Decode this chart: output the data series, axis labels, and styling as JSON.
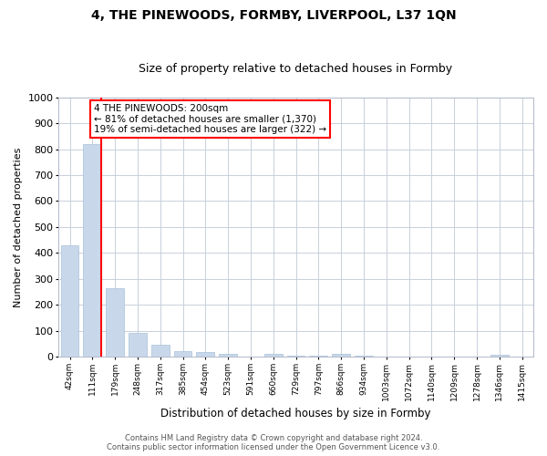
{
  "title": "4, THE PINEWOODS, FORMBY, LIVERPOOL, L37 1QN",
  "subtitle": "Size of property relative to detached houses in Formby",
  "xlabel": "Distribution of detached houses by size in Formby",
  "ylabel": "Number of detached properties",
  "categories": [
    "42sqm",
    "111sqm",
    "179sqm",
    "248sqm",
    "317sqm",
    "385sqm",
    "454sqm",
    "523sqm",
    "591sqm",
    "660sqm",
    "729sqm",
    "797sqm",
    "866sqm",
    "934sqm",
    "1003sqm",
    "1072sqm",
    "1140sqm",
    "1209sqm",
    "1278sqm",
    "1346sqm",
    "1415sqm"
  ],
  "values": [
    430,
    820,
    265,
    90,
    47,
    22,
    17,
    12,
    0,
    10,
    5,
    3,
    10,
    3,
    0,
    0,
    0,
    0,
    0,
    8,
    0
  ],
  "bar_color": "#c8d8ea",
  "bar_edge_color": "#a8c0d8",
  "annotation_text": "4 THE PINEWOODS: 200sqm\n← 81% of detached houses are smaller (1,370)\n19% of semi-detached houses are larger (322) →",
  "ylim": [
    0,
    1000
  ],
  "yticks": [
    0,
    100,
    200,
    300,
    400,
    500,
    600,
    700,
    800,
    900,
    1000
  ],
  "footer_line1": "Contains HM Land Registry data © Crown copyright and database right 2024.",
  "footer_line2": "Contains public sector information licensed under the Open Government Licence v3.0.",
  "bg_color": "#ffffff",
  "grid_color": "#c8d0dc",
  "title_fontsize": 10,
  "subtitle_fontsize": 9
}
